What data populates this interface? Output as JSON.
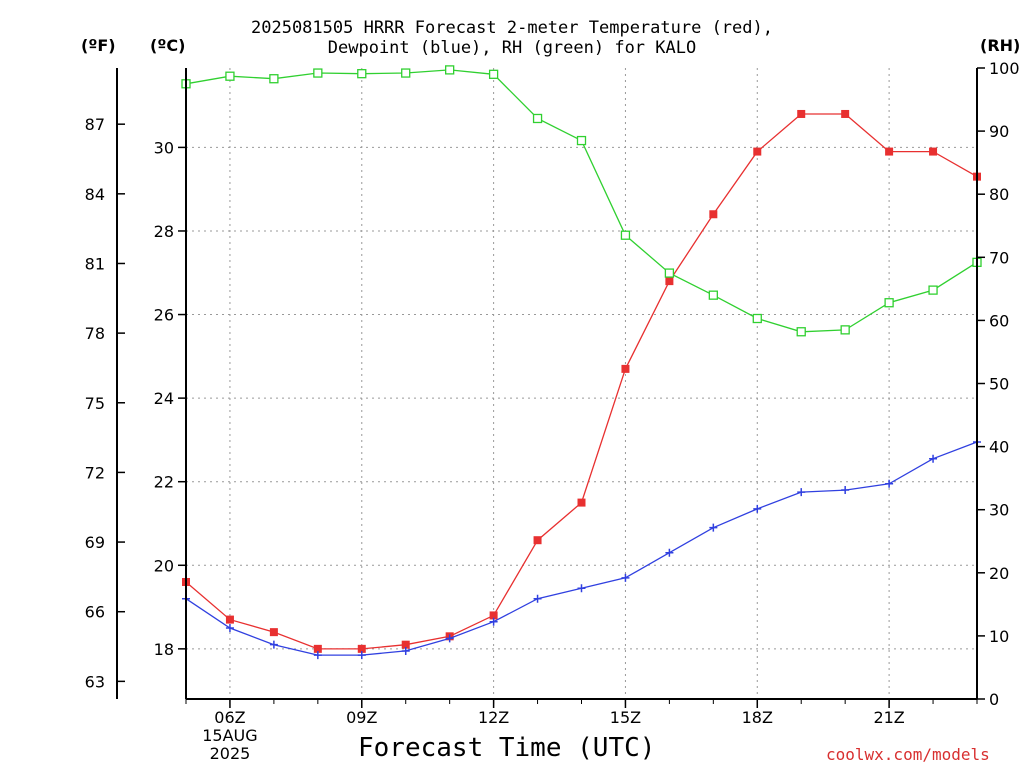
{
  "chart_data": {
    "type": "line",
    "title_line1": "2025081505 HRRR Forecast 2-meter Temperature (red),",
    "title_line2": "Dewpoint (blue), RH (green) for KALO",
    "xlabel": "Forecast Time (UTC)",
    "unit_f": "(ºF)",
    "unit_c": "(ºC)",
    "unit_rh": "(RH)",
    "credit": "coolwx.com/models",
    "x_hours": [
      5,
      6,
      7,
      8,
      9,
      10,
      11,
      12,
      13,
      14,
      15,
      16,
      17,
      18,
      19,
      20,
      21,
      22,
      23
    ],
    "x_ticks": [
      {
        "hour": 6,
        "label": "06Z",
        "date": "15AUG",
        "year": "2025"
      },
      {
        "hour": 9,
        "label": "09Z"
      },
      {
        "hour": 12,
        "label": "12Z"
      },
      {
        "hour": 15,
        "label": "15Z"
      },
      {
        "hour": 18,
        "label": "18Z"
      },
      {
        "hour": 21,
        "label": "21Z"
      }
    ],
    "xlim": [
      5,
      23
    ],
    "ylim_c": [
      16.8,
      31.9
    ],
    "ylim_rh": [
      0,
      100
    ],
    "yticks_c": [
      18,
      20,
      22,
      24,
      26,
      28,
      30
    ],
    "yticks_f": [
      63,
      66,
      69,
      72,
      75,
      78,
      81,
      84,
      87
    ],
    "yticks_rh": [
      0,
      10,
      20,
      30,
      40,
      50,
      60,
      70,
      80,
      90,
      100
    ],
    "grid": true,
    "series": [
      {
        "name": "Temperature",
        "color": "#e83030",
        "marker": "filled-square",
        "axis": "c",
        "values": [
          19.6,
          18.7,
          18.4,
          18.0,
          18.0,
          18.1,
          18.3,
          18.8,
          20.6,
          21.5,
          24.7,
          26.8,
          28.4,
          29.9,
          30.8,
          30.8,
          29.9,
          29.9,
          29.3
        ]
      },
      {
        "name": "Dewpoint",
        "color": "#3040e0",
        "marker": "plus",
        "axis": "c",
        "values": [
          19.2,
          18.5,
          18.1,
          17.85,
          17.85,
          17.95,
          18.25,
          18.65,
          19.2,
          19.45,
          19.7,
          20.3,
          20.9,
          21.35,
          21.75,
          21.8,
          21.95,
          22.55,
          22.95
        ]
      },
      {
        "name": "RH",
        "color": "#30d030",
        "marker": "open-square",
        "axis": "rh",
        "values": [
          97.5,
          98.7,
          98.3,
          99.2,
          99.1,
          99.2,
          99.7,
          99.0,
          92.0,
          88.5,
          73.5,
          67.5,
          64.0,
          60.3,
          58.2,
          58.5,
          62.8,
          64.8,
          69.2
        ]
      }
    ]
  }
}
